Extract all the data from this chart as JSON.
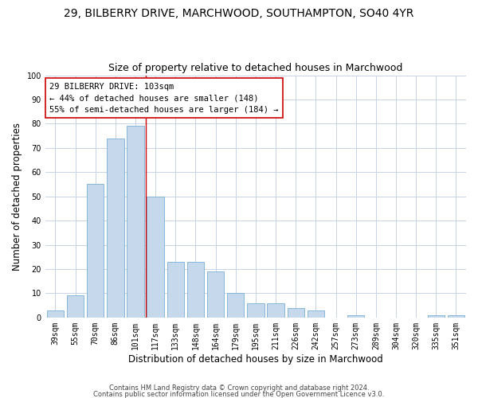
{
  "title1": "29, BILBERRY DRIVE, MARCHWOOD, SOUTHAMPTON, SO40 4YR",
  "title2": "Size of property relative to detached houses in Marchwood",
  "xlabel": "Distribution of detached houses by size in Marchwood",
  "ylabel": "Number of detached properties",
  "categories": [
    "39sqm",
    "55sqm",
    "70sqm",
    "86sqm",
    "101sqm",
    "117sqm",
    "133sqm",
    "148sqm",
    "164sqm",
    "179sqm",
    "195sqm",
    "211sqm",
    "226sqm",
    "242sqm",
    "257sqm",
    "273sqm",
    "289sqm",
    "304sqm",
    "320sqm",
    "335sqm",
    "351sqm"
  ],
  "values": [
    3,
    9,
    55,
    74,
    79,
    50,
    23,
    23,
    19,
    10,
    6,
    6,
    4,
    3,
    0,
    1,
    0,
    0,
    0,
    1,
    1
  ],
  "bar_color": "#c5d8ec",
  "bar_edge_color": "#7aafd4",
  "vline_color": "#cc0000",
  "vline_pos": 4.5,
  "annotation_text": "29 BILBERRY DRIVE: 103sqm\n← 44% of detached houses are smaller (148)\n55% of semi-detached houses are larger (184) →",
  "annotation_box_color": "#ffffff",
  "annotation_box_edge": "#cc0000",
  "background_color": "#ffffff",
  "grid_color": "#c8d4e4",
  "footer1": "Contains HM Land Registry data © Crown copyright and database right 2024.",
  "footer2": "Contains public sector information licensed under the Open Government Licence v3.0.",
  "ylim": [
    0,
    100
  ],
  "yticks": [
    0,
    10,
    20,
    30,
    40,
    50,
    60,
    70,
    80,
    90,
    100
  ],
  "title1_fontsize": 10,
  "title2_fontsize": 9,
  "xlabel_fontsize": 8.5,
  "ylabel_fontsize": 8.5,
  "tick_fontsize": 7,
  "annotation_fontsize": 7.5,
  "footer_fontsize": 6
}
